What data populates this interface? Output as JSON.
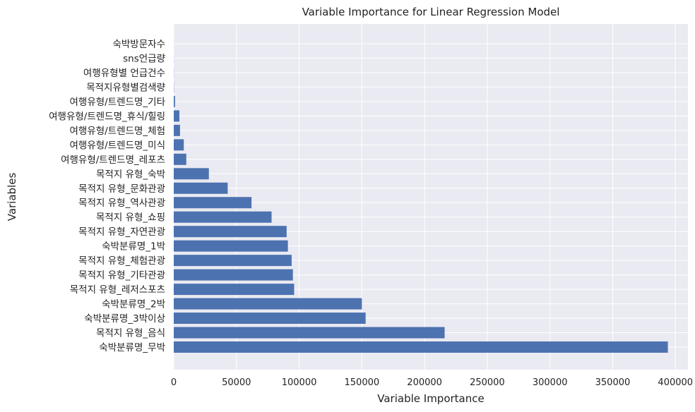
{
  "chart_data": {
    "type": "bar",
    "orientation": "horizontal",
    "title": "Variable Importance for Linear Regression Model",
    "xlabel": "Variable Importance",
    "ylabel": "Variables",
    "xlim": [
      0,
      410000
    ],
    "xticks": [
      0,
      50000,
      100000,
      150000,
      200000,
      250000,
      300000,
      350000,
      400000
    ],
    "grid": true,
    "background_color": "#EAEAF2",
    "bar_color": "#4C72B0",
    "categories": [
      "숙박분류명_무박",
      "목적지 유형_음식",
      "숙박분류명_3박이상",
      "숙박분류명_2박",
      "목적지 유형_레저스포츠",
      "목적지 유형_기타관광",
      "목적지 유형_체험관광",
      "숙박분류명_1박",
      "목적지 유형_자연관광",
      "목적지 유형_쇼핑",
      "목적지 유형_역사관광",
      "목적지 유형_문화관광",
      "목적지 유형_숙박",
      "여행유형/트렌드명_레포츠",
      "여행유형/트렌드명_미식",
      "여행유형/트렌드명_체험",
      "여행유형/트렌드명_휴식/힐링",
      "여행유형/트렌드명_기타",
      "목적지유형별검색량",
      "여행유형별 언급건수",
      "sns언급량",
      "숙박방문자수"
    ],
    "values": [
      394000,
      216000,
      153000,
      150000,
      96000,
      95000,
      94000,
      91000,
      90000,
      78000,
      62000,
      43000,
      28000,
      10000,
      8000,
      5000,
      4500,
      1000,
      150,
      100,
      50,
      30
    ]
  }
}
